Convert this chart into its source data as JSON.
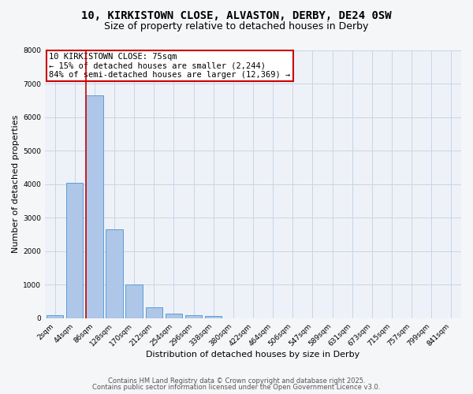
{
  "title_line1": "10, KIRKISTOWN CLOSE, ALVASTON, DERBY, DE24 0SW",
  "title_line2": "Size of property relative to detached houses in Derby",
  "xlabel": "Distribution of detached houses by size in Derby",
  "ylabel": "Number of detached properties",
  "categories": [
    "2sqm",
    "44sqm",
    "86sqm",
    "128sqm",
    "170sqm",
    "212sqm",
    "254sqm",
    "296sqm",
    "338sqm",
    "380sqm",
    "422sqm",
    "464sqm",
    "506sqm",
    "547sqm",
    "589sqm",
    "631sqm",
    "673sqm",
    "715sqm",
    "757sqm",
    "799sqm",
    "841sqm"
  ],
  "values": [
    100,
    4050,
    6650,
    2650,
    1000,
    330,
    130,
    80,
    70,
    0,
    0,
    0,
    0,
    0,
    0,
    0,
    0,
    0,
    0,
    0,
    0
  ],
  "bar_color": "#aec6e8",
  "bar_edgecolor": "#5a9fd4",
  "vline_color": "#cc0000",
  "ylim_max": 8000,
  "yticks": [
    0,
    1000,
    2000,
    3000,
    4000,
    5000,
    6000,
    7000,
    8000
  ],
  "annotation_title": "10 KIRKISTOWN CLOSE: 75sqm",
  "annotation_line2": "← 15% of detached houses are smaller (2,244)",
  "annotation_line3": "84% of semi-detached houses are larger (12,369) →",
  "annotation_box_edgecolor": "#cc0000",
  "grid_color": "#c8d4e8",
  "bg_color": "#eef2f8",
  "fig_bg_color": "#f5f6f8",
  "footer_line1": "Contains HM Land Registry data © Crown copyright and database right 2025.",
  "footer_line2": "Contains public sector information licensed under the Open Government Licence v3.0.",
  "title_fontsize": 10,
  "subtitle_fontsize": 9,
  "axis_label_fontsize": 8,
  "tick_fontsize": 6.5,
  "annotation_fontsize": 7.5,
  "footer_fontsize": 6
}
